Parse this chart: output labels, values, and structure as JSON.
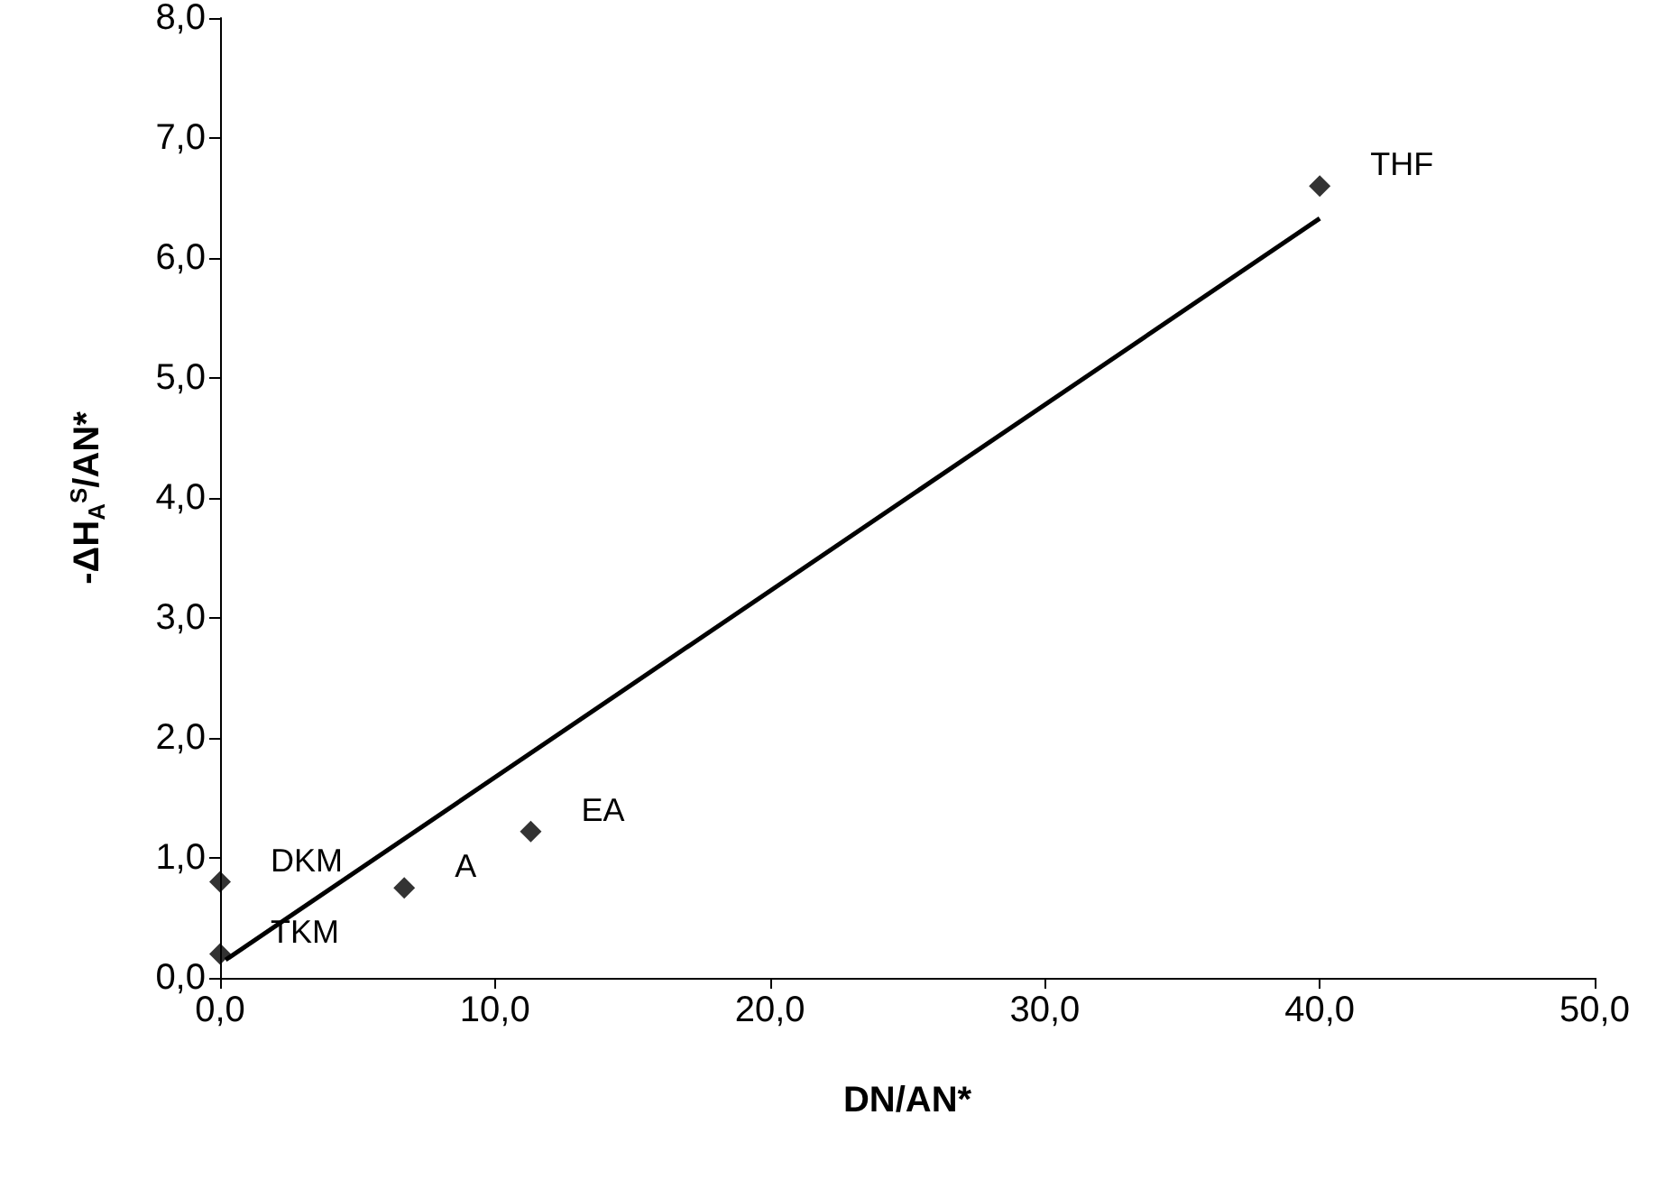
{
  "chart_data": {
    "type": "scatter",
    "xlabel": "DN/AN*",
    "ylabel": "-ΔH$_{A}$$^{S}$/AN*",
    "xlim": [
      0,
      50
    ],
    "xticks": [
      {
        "value": 0,
        "label": "0,0"
      },
      {
        "value": 10,
        "label": "10,0"
      },
      {
        "value": 20,
        "label": "20,0"
      },
      {
        "value": 30,
        "label": "30,0"
      },
      {
        "value": 40,
        "label": "40,0"
      },
      {
        "value": 50,
        "label": "50,0"
      }
    ],
    "ylim": [
      0,
      8
    ],
    "yticks": [
      {
        "value": 0,
        "label": "0,0"
      },
      {
        "value": 1,
        "label": "1,0"
      },
      {
        "value": 2,
        "label": "2,0"
      },
      {
        "value": 3,
        "label": "3,0"
      },
      {
        "value": 4,
        "label": "4,0"
      },
      {
        "value": 5,
        "label": "5,0"
      },
      {
        "value": 6,
        "label": "6,0"
      },
      {
        "value": 7,
        "label": "7,0"
      },
      {
        "value": 8,
        "label": "8,0"
      }
    ],
    "grid": false,
    "series": [
      {
        "color": "#000000",
        "marker": "diamond",
        "x": [
          0,
          0,
          6.7,
          11.3,
          40
        ],
        "values": [
          0.8,
          0.2,
          0.75,
          1.22,
          6.6
        ]
      },
      {
        "type": "line",
        "color": "#000000",
        "marker": "none",
        "line_style": "solid",
        "x": [
          0.2,
          40
        ],
        "values": [
          0.15,
          6.33
        ]
      }
    ],
    "annotations": [
      {
        "text": "DKM",
        "x": 0,
        "y": 0.8
      },
      {
        "text": "TKM",
        "x": 0,
        "y": 0.2
      },
      {
        "text": "A",
        "x": 6.7,
        "y": 0.75
      },
      {
        "text": "EA",
        "x": 11.3,
        "y": 1.22
      },
      {
        "text": "THF",
        "x": 40,
        "y": 6.6
      }
    ]
  }
}
